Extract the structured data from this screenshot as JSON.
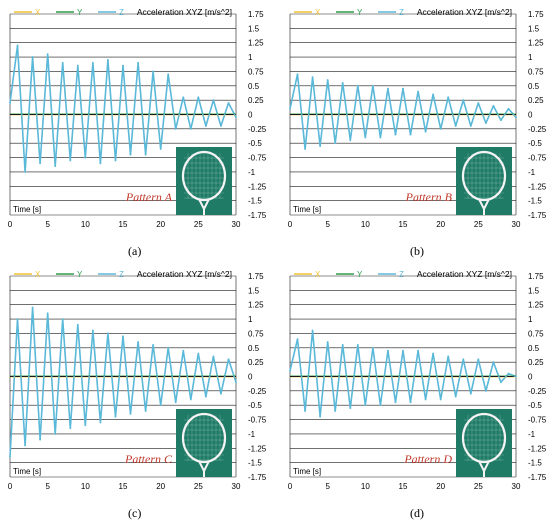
{
  "figure": {
    "colors": {
      "x": "#f2c230",
      "y": "#2e9e4a",
      "z": "#5ab8d8",
      "grid": "#1a1a1a",
      "pattern_text": "#c0392b",
      "racket_bg": "#1f7a66"
    },
    "racket_icon": "badminton-racket-photo"
  },
  "chart_data": [
    {
      "type": "line",
      "title": "Acceleration XYZ [m/s^2]",
      "legend": [
        "X",
        "Y",
        "Z"
      ],
      "xlabel": "Time [s]",
      "xlim": [
        0,
        30
      ],
      "xticks": [
        "0",
        "5",
        "10",
        "15",
        "20",
        "25",
        "30"
      ],
      "ylim": [
        -1.75,
        1.75
      ],
      "yticks": [
        "1.75",
        "1.5",
        "1.25",
        "1",
        "0.75",
        "0.5",
        "0.25",
        "0",
        "-0.25",
        "-0.5",
        "-0.75",
        "-1",
        "-1.25",
        "-1.5",
        "-1.75"
      ],
      "grid": true,
      "annotation": "Pattern A",
      "caption": "(a)",
      "series": [
        {
          "name": "Z",
          "x": [
            0,
            1,
            2,
            3,
            4,
            5,
            6,
            7,
            8,
            9,
            10,
            11,
            12,
            13,
            14,
            15,
            16,
            17,
            18,
            19,
            20,
            21,
            22,
            23,
            24,
            25,
            26,
            27,
            28,
            29,
            30
          ],
          "values": [
            0.2,
            1.2,
            -1.0,
            1.0,
            -0.85,
            1.05,
            -0.9,
            0.9,
            -0.8,
            0.85,
            -0.75,
            0.9,
            -0.85,
            0.95,
            -0.8,
            0.85,
            -0.7,
            0.9,
            -0.7,
            0.75,
            -0.6,
            0.7,
            -0.25,
            0.3,
            -0.25,
            0.3,
            -0.2,
            0.25,
            -0.2,
            0.2,
            -0.05
          ]
        }
      ]
    },
    {
      "type": "line",
      "title": "Acceleration XYZ [m/s^2]",
      "legend": [
        "X",
        "Y",
        "Z"
      ],
      "xlabel": "Time [s]",
      "xlim": [
        0,
        30
      ],
      "xticks": [
        "0",
        "5",
        "10",
        "15",
        "20",
        "25",
        "30"
      ],
      "ylim": [
        -1.75,
        1.75
      ],
      "yticks": [
        "1.75",
        "1.5",
        "1.25",
        "1",
        "0.75",
        "0.5",
        "0.25",
        "0",
        "-0.25",
        "-0.5",
        "-0.75",
        "-1",
        "-1.25",
        "-1.5",
        "-1.75"
      ],
      "grid": true,
      "annotation": "Pattern B",
      "caption": "(b)",
      "series": [
        {
          "name": "Z",
          "x": [
            0,
            1,
            2,
            3,
            4,
            5,
            6,
            7,
            8,
            9,
            10,
            11,
            12,
            13,
            14,
            15,
            16,
            17,
            18,
            19,
            20,
            21,
            22,
            23,
            24,
            25,
            26,
            27,
            28,
            29,
            30
          ],
          "values": [
            0.1,
            0.7,
            -0.6,
            0.65,
            -0.55,
            0.6,
            -0.5,
            0.55,
            -0.45,
            0.5,
            -0.4,
            0.5,
            -0.4,
            0.45,
            -0.35,
            0.45,
            -0.35,
            0.4,
            -0.3,
            0.35,
            -0.25,
            0.3,
            -0.2,
            0.25,
            -0.2,
            0.2,
            -0.15,
            0.15,
            -0.1,
            0.1,
            -0.05
          ]
        }
      ]
    },
    {
      "type": "line",
      "title": "Acceleration XYZ [m/s^2]",
      "legend": [
        "X",
        "Y",
        "Z"
      ],
      "xlabel": "Time [s]",
      "xlim": [
        0,
        30
      ],
      "xticks": [
        "0",
        "5",
        "10",
        "15",
        "20",
        "25",
        "30"
      ],
      "ylim": [
        -1.75,
        1.75
      ],
      "yticks": [
        "1.75",
        "1.5",
        "1.25",
        "1",
        "0.75",
        "0.5",
        "0.25",
        "0",
        "-0.25",
        "-0.5",
        "-0.75",
        "-1",
        "-1.25",
        "-1.5",
        "-1.75"
      ],
      "grid": true,
      "annotation": "Pattern C",
      "caption": "(c)",
      "series": [
        {
          "name": "Z",
          "x": [
            0,
            1,
            2,
            3,
            4,
            5,
            6,
            7,
            8,
            9,
            10,
            11,
            12,
            13,
            14,
            15,
            16,
            17,
            18,
            19,
            20,
            21,
            22,
            23,
            24,
            25,
            26,
            27,
            28,
            29,
            30
          ],
          "values": [
            -1.4,
            1.0,
            -1.2,
            1.2,
            -1.1,
            1.1,
            -1.0,
            1.0,
            -0.9,
            0.9,
            -0.85,
            0.8,
            -0.8,
            0.75,
            -0.7,
            0.7,
            -0.65,
            0.6,
            -0.6,
            0.55,
            -0.5,
            0.5,
            -0.45,
            0.45,
            -0.4,
            0.4,
            -0.35,
            0.35,
            -0.3,
            0.3,
            -0.1
          ]
        }
      ]
    },
    {
      "type": "line",
      "title": "Acceleration XYZ [m/s^2]",
      "legend": [
        "X",
        "Y",
        "Z"
      ],
      "xlabel": "Time [s]",
      "xlim": [
        0,
        30
      ],
      "xticks": [
        "0",
        "5",
        "10",
        "15",
        "20",
        "25",
        "30"
      ],
      "ylim": [
        -1.75,
        1.75
      ],
      "yticks": [
        "1.75",
        "1.5",
        "1.25",
        "1",
        "0.75",
        "0.5",
        "0.25",
        "0",
        "-0.25",
        "-0.5",
        "-0.75",
        "-1",
        "-1.25",
        "-1.5",
        "-1.75"
      ],
      "grid": true,
      "annotation": "Pattern D",
      "caption": "(d)",
      "series": [
        {
          "name": "Z",
          "x": [
            0,
            1,
            2,
            3,
            4,
            5,
            6,
            7,
            8,
            9,
            10,
            11,
            12,
            13,
            14,
            15,
            16,
            17,
            18,
            19,
            20,
            21,
            22,
            23,
            24,
            25,
            26,
            27,
            28,
            29,
            30
          ],
          "values": [
            0.1,
            0.65,
            -0.6,
            0.8,
            -0.7,
            0.6,
            -0.6,
            0.55,
            -0.55,
            0.55,
            -0.5,
            0.5,
            -0.5,
            0.45,
            -0.45,
            0.45,
            -0.45,
            0.45,
            -0.4,
            0.4,
            -0.4,
            0.35,
            -0.35,
            0.3,
            -0.3,
            0.3,
            -0.25,
            0.25,
            -0.1,
            0.05,
            0.0
          ]
        }
      ]
    }
  ]
}
